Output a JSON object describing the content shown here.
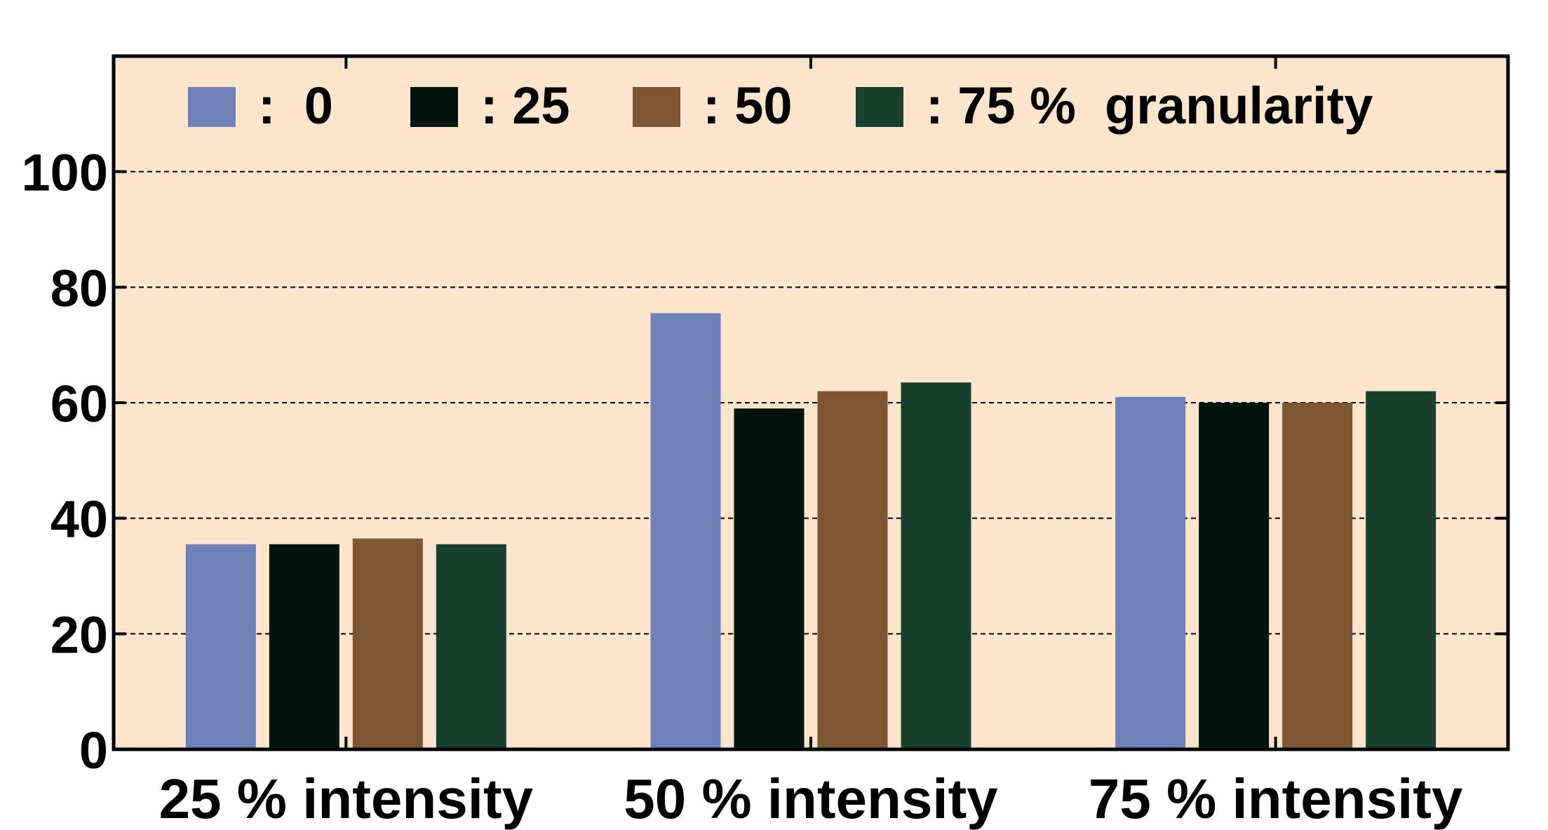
{
  "chart_data": {
    "type": "bar",
    "categories": [
      "25 % intensity",
      "50 % intensity",
      "75 % intensity"
    ],
    "series": [
      {
        "name": ":  0",
        "color": "#6f80b8",
        "values": [
          35.5,
          75.5,
          61
        ]
      },
      {
        "name": ": 25",
        "color": "#04140f",
        "values": [
          35.5,
          59,
          60
        ]
      },
      {
        "name": ": 50",
        "color": "#7d5733",
        "values": [
          36.5,
          62,
          60
        ]
      },
      {
        "name": ": 75 %  granularity",
        "color": "#17412e",
        "values": [
          35.5,
          63.5,
          62
        ]
      }
    ],
    "ylim": [
      0,
      120
    ],
    "yticks": [
      "0",
      "20",
      "40",
      "60",
      "80",
      "100"
    ],
    "ytick_values": [
      0,
      20,
      40,
      60,
      80,
      100
    ],
    "grid": true,
    "grid_style": "dashed",
    "background": "#fde4cc",
    "legend_position": "top",
    "title": "",
    "xlabel": "",
    "ylabel": ""
  }
}
